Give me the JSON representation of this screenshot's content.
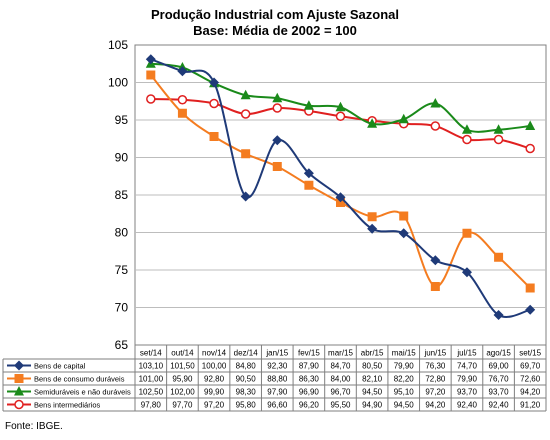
{
  "chart_data": {
    "type": "line",
    "title": "Produção Industrial com Ajuste Sazonal",
    "subtitle": "Base: Média de 2002 = 100",
    "categories": [
      "set/14",
      "out/14",
      "nov/14",
      "dez/14",
      "jan/15",
      "fev/15",
      "mar/15",
      "abr/15",
      "mai/15",
      "jun/15",
      "jul/15",
      "ago/15",
      "set/15"
    ],
    "ylim": [
      65,
      105
    ],
    "yticks": [
      "65",
      "70",
      "75",
      "80",
      "85",
      "90",
      "95",
      "100",
      "105"
    ],
    "grid": true,
    "legend": "table-below",
    "series": [
      {
        "name": "Bens de capital",
        "color": "#1f3a78",
        "marker": "diamond",
        "values": [
          103.1,
          101.5,
          100.0,
          84.8,
          92.3,
          87.9,
          84.7,
          80.5,
          79.9,
          76.3,
          74.7,
          69.0,
          69.7
        ],
        "labels": [
          "103,10",
          "101,50",
          "100,00",
          "84,80",
          "92,30",
          "87,90",
          "84,70",
          "80,50",
          "79,90",
          "76,30",
          "74,70",
          "69,00",
          "69,70"
        ]
      },
      {
        "name": "Bens de consumo duráveis",
        "color": "#f47c20",
        "marker": "square",
        "values": [
          101.0,
          95.9,
          92.8,
          90.5,
          88.8,
          86.3,
          84.0,
          82.1,
          82.2,
          72.8,
          79.9,
          76.7,
          72.6
        ],
        "labels": [
          "101,00",
          "95,90",
          "92,80",
          "90,50",
          "88,80",
          "86,30",
          "84,00",
          "82,10",
          "82,20",
          "72,80",
          "79,90",
          "76,70",
          "72,60"
        ]
      },
      {
        "name": "Semiduráveis e não duráveis",
        "color": "#1a8a1a",
        "marker": "triangle",
        "values": [
          102.5,
          102.0,
          99.9,
          98.3,
          97.9,
          96.9,
          96.7,
          94.5,
          95.1,
          97.2,
          93.7,
          93.7,
          94.2
        ],
        "labels": [
          "102,50",
          "102,00",
          "99,90",
          "98,30",
          "97,90",
          "96,90",
          "96,70",
          "94,50",
          "95,10",
          "97,20",
          "93,70",
          "93,70",
          "94,20"
        ]
      },
      {
        "name": "Bens intermediários",
        "color": "#e02020",
        "marker": "circle",
        "values": [
          97.8,
          97.7,
          97.2,
          95.8,
          96.6,
          96.2,
          95.5,
          94.9,
          94.5,
          94.2,
          92.4,
          92.4,
          91.2
        ],
        "labels": [
          "97,80",
          "97,70",
          "97,20",
          "95,80",
          "96,60",
          "96,20",
          "95,50",
          "94,90",
          "94,50",
          "94,20",
          "92,40",
          "92,40",
          "91,20"
        ]
      }
    ]
  },
  "source": "Fonte: IBGE."
}
